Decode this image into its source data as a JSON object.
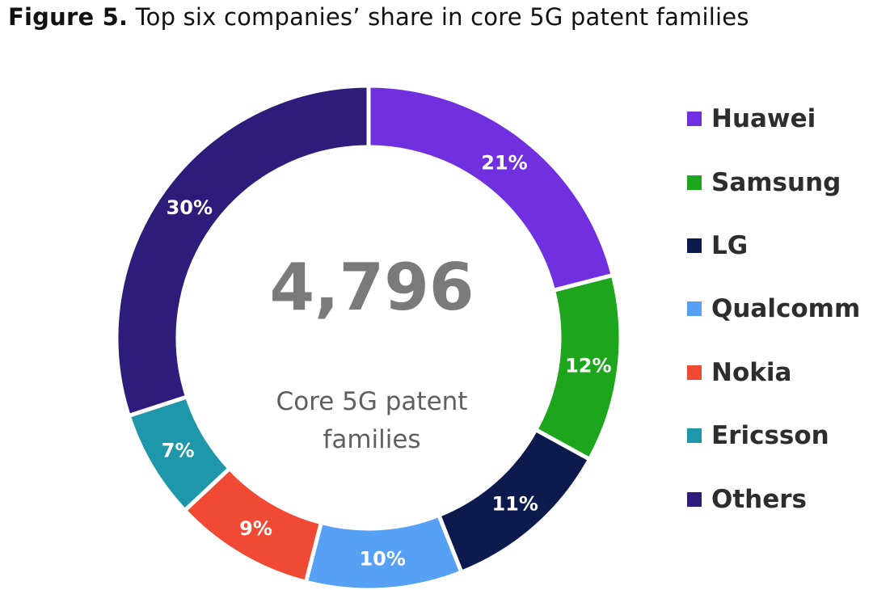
{
  "figure": {
    "label": "Figure 5.",
    "caption": "Top six companies’ share in core 5G patent families"
  },
  "center": {
    "total": "4,796",
    "caption_line1": "Core 5G patent",
    "caption_line2": "families"
  },
  "chart_data": {
    "type": "pie",
    "variant": "donut",
    "title": "Top six companies’ share in core 5G patent families",
    "total": 4796,
    "unit": "%",
    "legend_position": "right",
    "categories": [
      "Huawei",
      "Samsung",
      "LG",
      "Qualcomm",
      "Nokia",
      "Ericsson",
      "Others"
    ],
    "values": [
      21,
      12,
      11,
      10,
      9,
      7,
      30
    ],
    "labels": [
      "21%",
      "12%",
      "11%",
      "10%",
      "9%",
      "7%",
      "30%"
    ],
    "colors": [
      "#7030e0",
      "#1ea51e",
      "#0d1a4e",
      "#56a0f6",
      "#f04a35",
      "#1d97a9",
      "#2f1b7a"
    ]
  }
}
